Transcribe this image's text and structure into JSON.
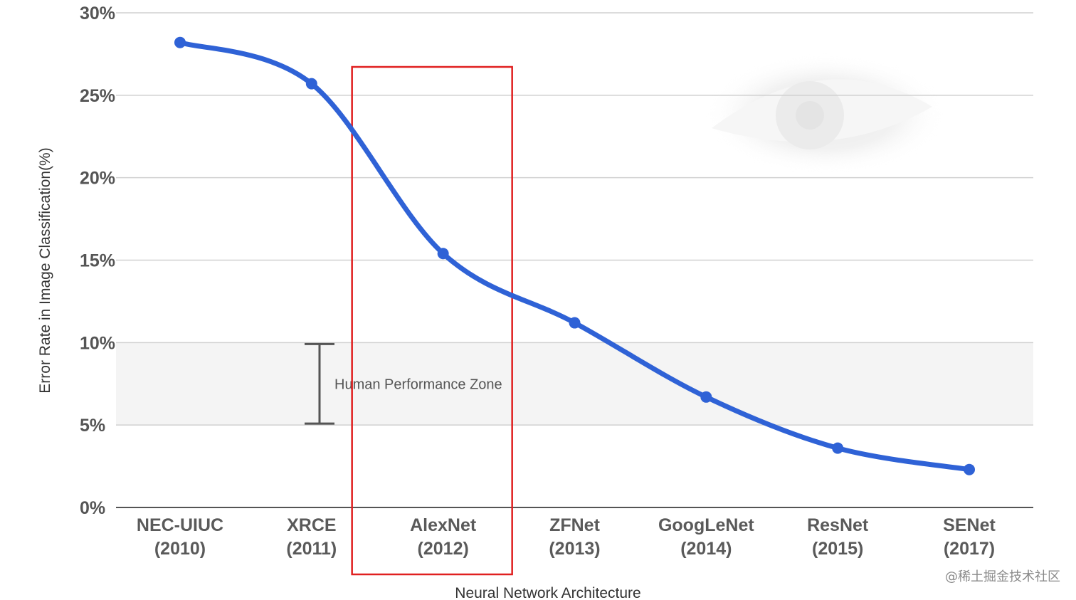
{
  "chart_data": {
    "type": "line",
    "categories": [
      [
        "NEC-UIUC",
        "(2010)"
      ],
      [
        "XRCE",
        "(2011)"
      ],
      [
        "AlexNet",
        "(2012)"
      ],
      [
        "ZFNet",
        "(2013)"
      ],
      [
        "GoogLeNet",
        "(2014)"
      ],
      [
        "ResNet",
        "(2015)"
      ],
      [
        "SENet",
        "(2017)"
      ]
    ],
    "series": [
      {
        "values": [
          28.2,
          25.7,
          15.4,
          11.2,
          6.7,
          3.6,
          2.3
        ],
        "color": "#2f62d6"
      }
    ],
    "xlabel": "Neural Network Architecture",
    "ylabel": "Error Rate in Image Classification(%)",
    "ylim": [
      0,
      30
    ],
    "yticks": [
      0,
      5,
      10,
      15,
      20,
      25,
      30
    ],
    "ytick_labels": [
      "0%",
      "5%",
      "10%",
      "15%",
      "20%",
      "25%",
      "30%"
    ],
    "grid": true,
    "zone": {
      "label": "Human Performance Zone",
      "range": [
        5,
        10
      ],
      "color": "#f4f4f4"
    },
    "highlight": {
      "category_index": 2,
      "color": "#e02020"
    }
  },
  "watermark": "@稀土掘金技术社区"
}
